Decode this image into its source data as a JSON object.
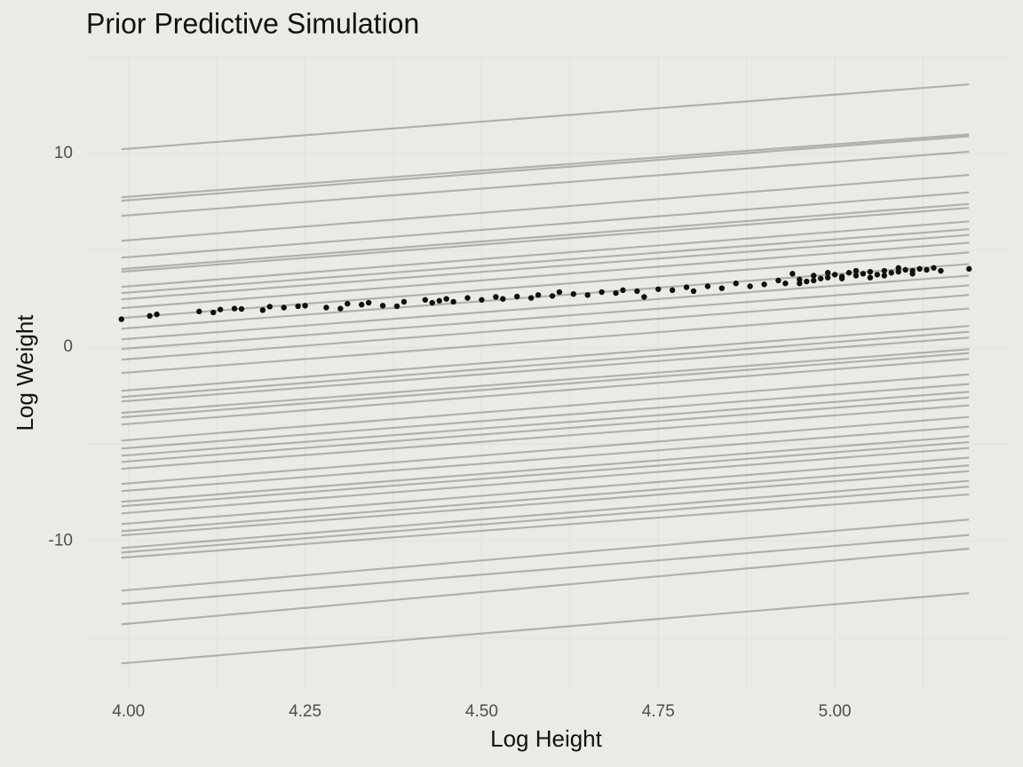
{
  "chart_data": {
    "type": "line",
    "title": "Prior Predictive Simulation",
    "x_label": "Log Height",
    "y_label": "Log Weight",
    "xlim": [
      3.94,
      5.245
    ],
    "ylim": [
      -17.6,
      15.05
    ],
    "xticks": [
      {
        "value": 4,
        "label": "4.00"
      },
      {
        "value": 4.25,
        "label": "4.25"
      },
      {
        "value": 4.5,
        "label": "4.50"
      },
      {
        "value": 4.75,
        "label": "4.75"
      },
      {
        "value": 5,
        "label": "5.00"
      }
    ],
    "yticks": [
      -10,
      0,
      10
    ],
    "x_minor_grid": [
      4.125,
      4.375,
      4.625,
      4.875,
      5.125
    ],
    "y_minor_grid": [
      -15,
      -5,
      5,
      15
    ],
    "grid": true,
    "background": "#ebebe5",
    "prior_lines": {
      "color": "#5d6158",
      "opacity": 0.42,
      "x": [
        3.99,
        5.19
      ],
      "series": [
        [
          10.23,
          13.58
        ],
        [
          7.75,
          11.0
        ],
        [
          7.57,
          10.9
        ],
        [
          6.79,
          10.1
        ],
        [
          5.5,
          8.9
        ],
        [
          4.63,
          8.0
        ],
        [
          4.04,
          7.4
        ],
        [
          3.9,
          7.2
        ],
        [
          3.12,
          6.5
        ],
        [
          2.8,
          6.1
        ],
        [
          2.48,
          5.8
        ],
        [
          2.02,
          5.4
        ],
        [
          1.51,
          4.9
        ],
        [
          0.96,
          4.3
        ],
        [
          0.41,
          3.7
        ],
        [
          -0.09,
          3.2
        ],
        [
          -0.64,
          2.7
        ],
        [
          -1.33,
          2.0
        ],
        [
          -2.25,
          1.1
        ],
        [
          -2.57,
          0.8
        ],
        [
          -2.8,
          0.5
        ],
        [
          -3.39,
          -0.1
        ],
        [
          -3.62,
          -0.3
        ],
        [
          -3.99,
          -0.6
        ],
        [
          -4.82,
          -1.4
        ],
        [
          -5.23,
          -1.9
        ],
        [
          -5.6,
          -2.3
        ],
        [
          -5.92,
          -2.6
        ],
        [
          -6.28,
          -3.0
        ],
        [
          -7.06,
          -3.6
        ],
        [
          -7.43,
          -4.1
        ],
        [
          -7.98,
          -4.6
        ],
        [
          -8.21,
          -4.9
        ],
        [
          -8.58,
          -5.2
        ],
        [
          -9.13,
          -5.7
        ],
        [
          -9.5,
          -6.1
        ],
        [
          -9.72,
          -6.4
        ],
        [
          -10.37,
          -6.9
        ],
        [
          -10.6,
          -7.2
        ],
        [
          -10.87,
          -7.6
        ],
        [
          -12.57,
          -8.9
        ],
        [
          -13.26,
          -9.7
        ],
        [
          -14.31,
          -10.4
        ],
        [
          -16.33,
          -12.7
        ]
      ]
    },
    "observed": {
      "color": "#111111",
      "x": [
        3.99,
        4.03,
        4.04,
        4.1,
        4.12,
        4.13,
        4.15,
        4.16,
        4.19,
        4.2,
        4.22,
        4.24,
        4.25,
        4.28,
        4.3,
        4.31,
        4.33,
        4.34,
        4.36,
        4.38,
        4.39,
        4.42,
        4.43,
        4.44,
        4.45,
        4.46,
        4.48,
        4.5,
        4.52,
        4.53,
        4.55,
        4.57,
        4.58,
        4.6,
        4.61,
        4.63,
        4.65,
        4.67,
        4.69,
        4.7,
        4.72,
        4.73,
        4.75,
        4.77,
        4.79,
        4.8,
        4.82,
        4.84,
        4.86,
        4.88,
        4.9,
        4.92,
        4.93,
        4.94,
        4.95,
        4.96,
        4.97,
        4.98,
        4.99,
        5.0,
        5.01,
        5.02,
        5.03,
        5.04,
        5.05,
        5.06,
        5.07,
        5.08,
        5.09,
        5.1,
        5.11,
        5.12,
        5.13,
        5.14,
        5.15,
        4.95,
        4.97,
        4.99,
        5.01,
        5.03,
        5.05,
        5.07,
        5.09,
        5.11,
        5.19
      ],
      "y": [
        1.45,
        1.62,
        1.7,
        1.85,
        1.8,
        1.95,
        2.0,
        1.98,
        1.92,
        2.1,
        2.05,
        2.12,
        2.15,
        2.05,
        2.0,
        2.25,
        2.2,
        2.3,
        2.15,
        2.12,
        2.35,
        2.45,
        2.3,
        2.4,
        2.5,
        2.35,
        2.55,
        2.45,
        2.6,
        2.5,
        2.62,
        2.55,
        2.7,
        2.65,
        2.85,
        2.75,
        2.7,
        2.85,
        2.8,
        2.95,
        2.9,
        2.6,
        3.0,
        2.95,
        3.1,
        2.9,
        3.15,
        3.05,
        3.3,
        3.15,
        3.25,
        3.45,
        3.3,
        3.8,
        3.5,
        3.4,
        3.7,
        3.55,
        3.6,
        3.75,
        3.65,
        3.85,
        3.7,
        3.8,
        3.9,
        3.75,
        3.95,
        3.85,
        3.9,
        4.0,
        3.95,
        4.05,
        4.0,
        4.1,
        3.95,
        3.3,
        3.45,
        3.85,
        3.55,
        3.95,
        3.6,
        3.7,
        4.1,
        3.8,
        4.05
      ]
    }
  }
}
